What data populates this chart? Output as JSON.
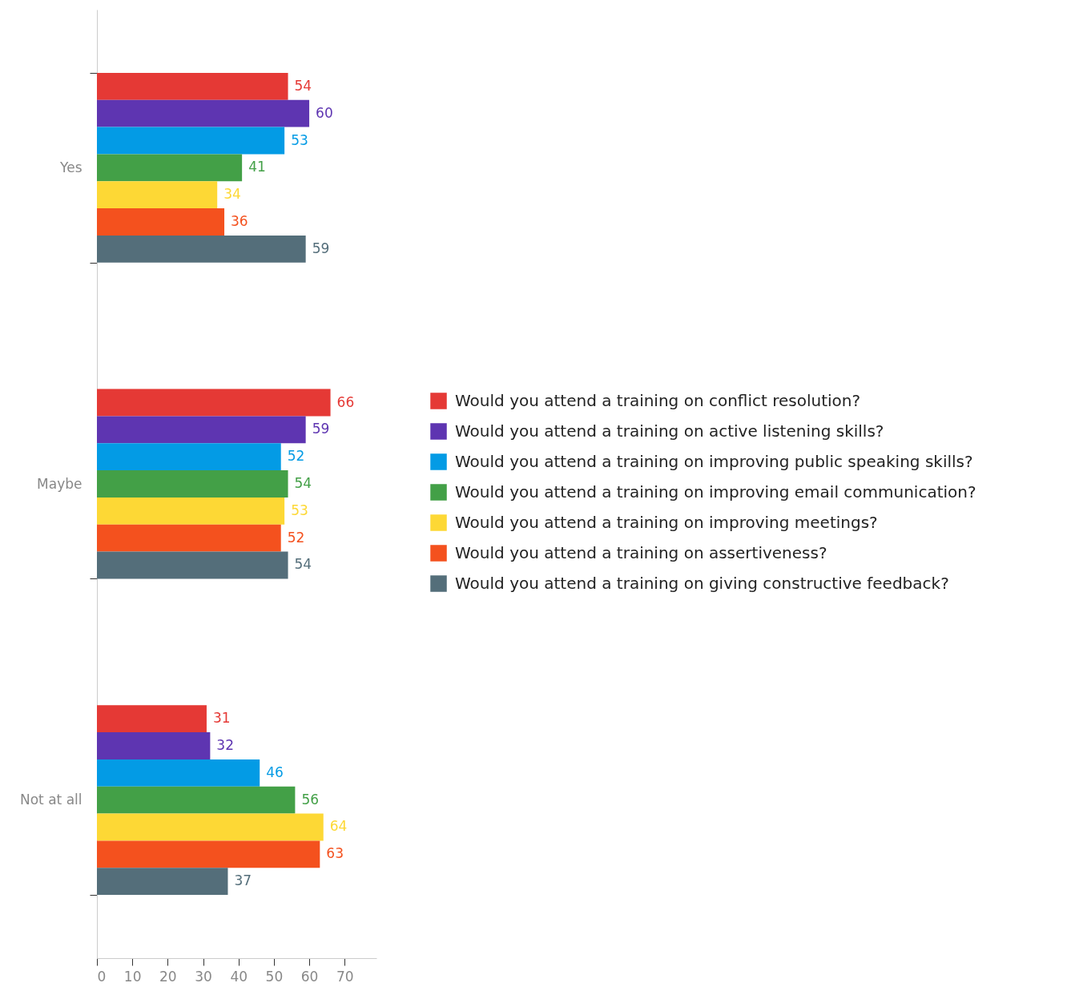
{
  "chart_data": {
    "type": "bar",
    "orientation": "horizontal",
    "categories": [
      "Yes",
      "Maybe",
      "Not at all"
    ],
    "series": [
      {
        "name": "Would you attend a training on conflict resolution?",
        "color": "#e53935",
        "values": [
          54,
          66,
          31
        ]
      },
      {
        "name": "Would you attend a training on active listening skills?",
        "color": "#5e35b1",
        "values": [
          60,
          59,
          32
        ]
      },
      {
        "name": "Would you attend a training on improving public speaking skills?",
        "color": "#039be5",
        "values": [
          53,
          52,
          46
        ]
      },
      {
        "name": "Would you attend a training on improving email communication?",
        "color": "#43a047",
        "values": [
          41,
          54,
          56
        ]
      },
      {
        "name": "Would you attend a training on improving meetings?",
        "color": "#fdd835",
        "values": [
          34,
          53,
          64
        ]
      },
      {
        "name": "Would you attend a training on assertiveness?",
        "color": "#f4511e",
        "values": [
          36,
          52,
          63
        ]
      },
      {
        "name": "Would you attend a training on giving constructive feedback?",
        "color": "#546e7a",
        "values": [
          59,
          54,
          37
        ]
      }
    ],
    "xlim": [
      0,
      79
    ],
    "xticks": [
      0,
      10,
      20,
      30,
      40,
      50,
      60,
      70
    ],
    "data_labels": true,
    "legend": "right",
    "grid": false
  }
}
